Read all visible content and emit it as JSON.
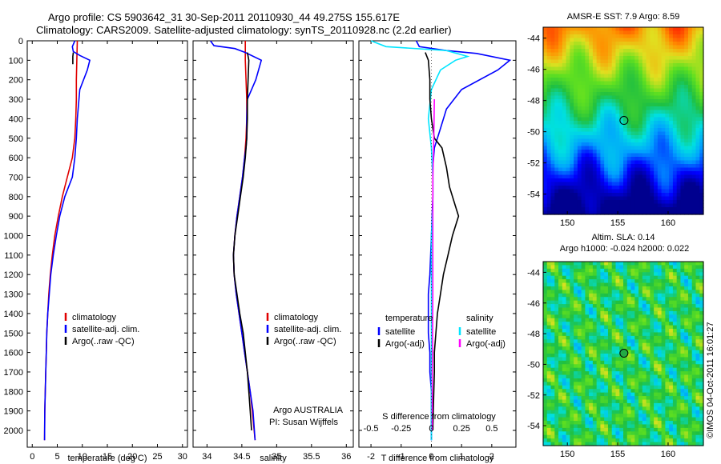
{
  "header": {
    "line1": "Argo profile: CS 5903642_31 30-Sep-2011 20110930_44 49.275S 155.617E",
    "line2": "Climatology: CARS2009. Satellite-adjusted climatology: synTS_20110928.nc (2.2d earlier)"
  },
  "colors": {
    "climatology": "#e00000",
    "satellite_adj": "#0000ff",
    "argo": "#000000",
    "satellite_cyan": "#00e5ff",
    "argo_adj_magenta": "#ff00ff"
  },
  "depth_axis": {
    "ylim": [
      0,
      2050
    ],
    "ticks": [
      0,
      100,
      200,
      300,
      400,
      500,
      600,
      700,
      800,
      900,
      1000,
      1100,
      1200,
      1300,
      1400,
      1500,
      1600,
      1700,
      1800,
      1900,
      2000
    ]
  },
  "chart_data": [
    {
      "type": "line",
      "id": "temperature",
      "xlabel": "temperature (deg C)",
      "xlim": [
        -1,
        31
      ],
      "xticks": [
        0,
        5,
        10,
        15,
        20,
        25,
        30
      ],
      "legend": [
        "climatology",
        "satellite-adj. clim.",
        "Argo(..raw -QC)"
      ],
      "series": [
        {
          "name": "climatology",
          "color": "#e00000",
          "x": [
            9.0,
            8.9,
            8.8,
            8.8,
            8.7,
            8.5,
            8.0,
            7.0,
            6.0,
            5.2,
            4.5,
            4.0,
            3.6,
            3.3,
            3.1,
            2.9,
            2.8,
            2.7,
            2.6,
            2.5,
            2.45
          ],
          "y": [
            0,
            100,
            200,
            300,
            400,
            500,
            600,
            700,
            800,
            900,
            1000,
            1100,
            1200,
            1300,
            1400,
            1500,
            1600,
            1700,
            1800,
            1900,
            2050
          ]
        },
        {
          "name": "satellite-adj. clim.",
          "color": "#0000ff",
          "x": [
            8.5,
            8.0,
            8.2,
            9.5,
            11.5,
            11.0,
            9.5,
            9.0,
            8.8,
            8.5,
            8.0,
            6.5,
            5.5,
            4.8,
            4.2,
            3.7,
            3.4,
            3.1,
            2.9,
            2.8,
            2.7,
            2.6,
            2.5,
            2.45
          ],
          "y": [
            0,
            30,
            55,
            75,
            100,
            150,
            250,
            400,
            500,
            600,
            700,
            800,
            900,
            1000,
            1100,
            1200,
            1300,
            1400,
            1500,
            1600,
            1700,
            1800,
            1900,
            2050
          ]
        },
        {
          "name": "Argo(..raw -QC)",
          "color": "#000000",
          "x": [
            8.2,
            8.1,
            8.1,
            8.1
          ],
          "y": [
            60,
            80,
            100,
            120
          ]
        }
      ]
    },
    {
      "type": "line",
      "id": "salinity",
      "xlabel": "salinity",
      "xlim": [
        33.8,
        36.1
      ],
      "xticks": [
        34,
        34.5,
        35,
        35.5,
        36
      ],
      "legend": [
        "climatology",
        "satellite-adj. clim.",
        "Argo(..raw -QC)"
      ],
      "annotation": [
        "Argo AUSTRALIA",
        "PI: Susan Wijffels"
      ],
      "series": [
        {
          "name": "climatology",
          "color": "#e00000",
          "x": [
            34.55,
            34.55,
            34.56,
            34.57,
            34.57,
            34.56,
            34.54,
            34.51,
            34.47,
            34.43,
            34.4,
            34.38,
            34.39,
            34.42,
            34.46,
            34.5,
            34.54,
            34.58,
            34.62,
            34.65,
            34.69
          ],
          "y": [
            0,
            100,
            200,
            300,
            400,
            500,
            600,
            700,
            800,
            900,
            1000,
            1100,
            1200,
            1300,
            1400,
            1500,
            1600,
            1700,
            1800,
            1900,
            2050
          ]
        },
        {
          "name": "satellite-adj. clim.",
          "color": "#0000ff",
          "x": [
            34.05,
            34.1,
            34.4,
            34.55,
            34.78,
            34.7,
            34.58,
            34.57,
            34.57,
            34.56,
            34.54,
            34.51,
            34.47,
            34.43,
            34.4,
            34.38,
            34.39,
            34.42,
            34.46,
            34.5,
            34.54,
            34.58,
            34.62,
            34.66,
            34.69
          ],
          "y": [
            0,
            25,
            40,
            60,
            100,
            200,
            300,
            400,
            500,
            550,
            600,
            700,
            800,
            900,
            1000,
            1100,
            1200,
            1300,
            1400,
            1500,
            1600,
            1700,
            1800,
            1900,
            2050
          ]
        },
        {
          "name": "Argo(..raw -QC)",
          "color": "#000000",
          "x": [
            34.58,
            34.6,
            34.59,
            34.58,
            34.58,
            34.57,
            34.55,
            34.52,
            34.48,
            34.44,
            34.4,
            34.38,
            34.39,
            34.43,
            34.47,
            34.52,
            34.55,
            34.58,
            34.6,
            34.62,
            34.64
          ],
          "y": [
            60,
            100,
            200,
            300,
            400,
            500,
            600,
            700,
            800,
            900,
            1000,
            1100,
            1200,
            1300,
            1400,
            1500,
            1600,
            1700,
            1800,
            1900,
            2000
          ]
        }
      ]
    },
    {
      "type": "line",
      "id": "difference",
      "xlabel": "T difference from climatology",
      "xlabel_top": "S difference from climatology",
      "xlim": [
        -2.4,
        2.8
      ],
      "xticks": [
        -2,
        -1,
        0,
        1,
        2
      ],
      "xticks_top_labels": [
        "-0.5",
        "-0.25",
        "0",
        "0.25",
        "0.5"
      ],
      "xticks_top_pos": [
        -2,
        -1,
        0,
        1,
        2
      ],
      "legend_temperature": {
        "title": "temperature",
        "items": [
          "satellite",
          "Argo(-adj)"
        ]
      },
      "legend_salinity": {
        "title": "salinity",
        "items": [
          "satellite",
          "Argo(-adj)"
        ]
      },
      "series": [
        {
          "name": "satellite",
          "color": "#0000ff",
          "x": [
            -0.5,
            -0.4,
            0.5,
            1.5,
            2.6,
            2.2,
            1.0,
            0.5,
            0.3,
            0.1,
            0.05,
            0.05,
            0.0,
            -0.05,
            -0.1,
            -0.1,
            -0.1,
            -0.05,
            -0.05,
            0.0,
            0.0,
            0.0
          ],
          "y": [
            0,
            30,
            50,
            65,
            100,
            150,
            250,
            350,
            450,
            550,
            650,
            800,
            1000,
            1200,
            1300,
            1400,
            1500,
            1600,
            1700,
            1800,
            1900,
            2050
          ]
        },
        {
          "name": "satellite",
          "color": "#00e5ff",
          "x": [
            -2.0,
            -1.5,
            0.5,
            1.2,
            0.8,
            0.3,
            0.0,
            -0.1,
            0.0,
            0.05,
            0.05,
            0.0,
            0.0,
            0.0,
            0.0,
            0.0,
            0.0,
            0.0
          ],
          "y": [
            0,
            30,
            50,
            80,
            100,
            150,
            250,
            400,
            550,
            700,
            850,
            1000,
            1200,
            1400,
            1600,
            1800,
            1900,
            2050
          ]
        },
        {
          "name": "Argo(-adj)",
          "color": "#000000",
          "x": [
            -0.2,
            -0.1,
            -0.05,
            -0.05,
            0.0,
            0.1,
            0.35,
            0.5,
            0.6,
            0.8,
            0.9,
            0.7,
            0.55,
            0.4,
            0.3,
            0.2,
            0.15,
            0.1,
            0.1,
            0.08,
            0.05
          ],
          "y": [
            60,
            100,
            200,
            300,
            400,
            500,
            550,
            650,
            750,
            850,
            900,
            1000,
            1100,
            1200,
            1300,
            1400,
            1500,
            1600,
            1700,
            1800,
            2000
          ]
        },
        {
          "name": "Argo(-adj)",
          "color": "#ff00ff",
          "x": [
            0.1,
            0.08,
            0.05,
            0.05,
            0.05,
            0.05,
            0.04,
            0.04,
            0.03,
            0.03,
            0.03,
            0.03
          ],
          "y": [
            300,
            500,
            700,
            900,
            1100,
            1300,
            1500,
            1600,
            1700,
            1800,
            1900,
            2000
          ]
        }
      ]
    }
  ],
  "maps": [
    {
      "title": "AMSR-E SST: 7.9 Argo: 8.59",
      "xticks": [
        150,
        155,
        160
      ],
      "yticks": [
        -44,
        -46,
        -48,
        -50,
        -52,
        -54
      ]
    },
    {
      "title_line1": "Altim. SLA: 0.14",
      "title_line2": "Argo h1000: -0.024 h2000: 0.022",
      "xticks": [
        150,
        155,
        160
      ],
      "yticks": [
        -44,
        -46,
        -48,
        -50,
        -52,
        -54
      ]
    }
  ],
  "footer_vertical": "©IMOS 04-Oct-2011 16:01:27"
}
